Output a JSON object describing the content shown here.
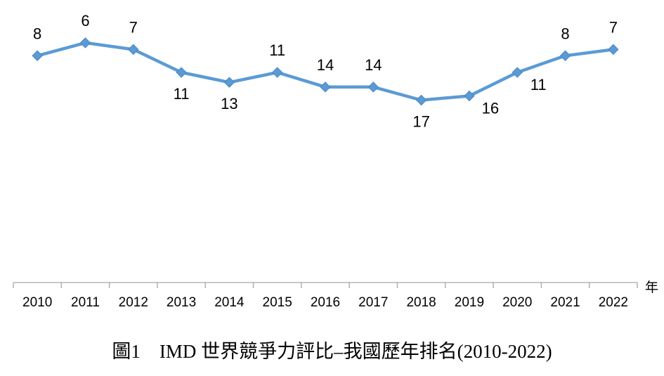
{
  "caption": "圖1　IMD 世界競爭力評比–我國歷年排名(2010-2022)",
  "chart_data": {
    "type": "line",
    "title": "",
    "xlabel": "年",
    "ylabel": "",
    "categories": [
      "2010",
      "2011",
      "2012",
      "2013",
      "2014",
      "2015",
      "2016",
      "2017",
      "2018",
      "2019",
      "2020",
      "2021",
      "2022"
    ],
    "series": [
      {
        "values": [
          8,
          6,
          7,
          11,
          13,
          11,
          14,
          14,
          17,
          16,
          11,
          8,
          7
        ],
        "color": "#5b9bd5",
        "marker": "diamond"
      }
    ],
    "y_axis": "inverted (rank 1 at top)",
    "ylim": [
      18.5,
      4
    ],
    "grid": false,
    "legend": "none"
  }
}
